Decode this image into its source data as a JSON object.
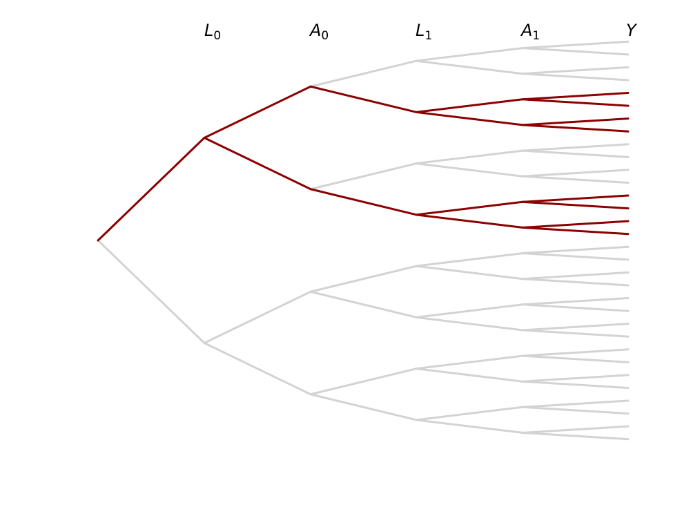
{
  "levels": [
    {
      "var": "L",
      "sub": "0"
    },
    {
      "var": "A",
      "sub": "0"
    },
    {
      "var": "L",
      "sub": "1"
    },
    {
      "var": "A",
      "sub": "1"
    },
    {
      "var": "Y",
      "sub": ""
    }
  ],
  "colors": {
    "highlight": "#8b0000",
    "muted": "#d3d3d3"
  },
  "highlighted_path_codes": [
    "1",
    "10",
    "0"
  ]
}
